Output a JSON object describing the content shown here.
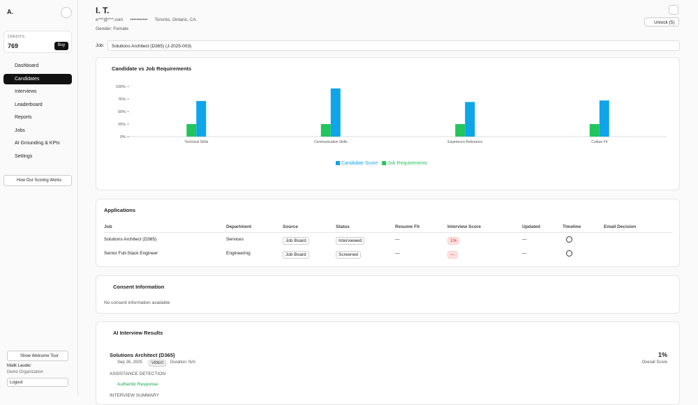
{
  "sidebar": {
    "logo": "A.",
    "credits_label": "CREDITS",
    "credits": 769,
    "buy": "Buy",
    "nav": [
      "Dashboard",
      "Candidates",
      "Interviews",
      "Leaderboard",
      "Reports",
      "Jobs",
      "AI Grounding & KPIs",
      "Settings"
    ],
    "scoring": "How Our Scoring Works",
    "tour": "Show Welcome Tour",
    "user": "Malik Lauder",
    "org": "Demo Organization",
    "logout": "Logout"
  },
  "header": {
    "name": "I. T.",
    "email": "e***@***.com",
    "phone": "•••••••••••",
    "location": "Toronto, Ontario, CA",
    "gender": "Gender: Female",
    "unlock": "Unlock (5)"
  },
  "job_select": {
    "label": "Job:",
    "value": "Solutions Architect (D365) (J-2025-003)"
  },
  "chart_card": {
    "title": "Candidate vs Job Requirements"
  },
  "chart_data": {
    "type": "bar",
    "categories": [
      "Technical Skills",
      "Communication Skills",
      "Experience Relevance",
      "Culture Fit"
    ],
    "series": [
      {
        "name": "Candidate Score",
        "color": "#0ea5e9",
        "values": [
          71,
          96,
          69,
          72
        ]
      },
      {
        "name": "Job Requirements",
        "color": "#22c55e",
        "values": [
          25,
          25,
          25,
          25
        ]
      }
    ],
    "ylim": [
      0,
      100
    ],
    "yticks": [
      {
        "value": 0,
        "label": "0%"
      },
      {
        "value": 25,
        "label": "25%"
      },
      {
        "value": 50,
        "label": "50%"
      },
      {
        "value": 75,
        "label": "75%"
      },
      {
        "value": 100,
        "label": "100%"
      }
    ]
  },
  "applications": {
    "title": "Applications",
    "columns": [
      "Job",
      "Department",
      "Source",
      "Status",
      "Resume Fit",
      "Interview Score",
      "Updated",
      "Timeline",
      "Email Decision"
    ],
    "rows": [
      [
        "Solutions Architect (D365)",
        "Services",
        "Job Board",
        "Interviewed",
        "—",
        "1%",
        "—"
      ],
      [
        "Senior Full-Stack Engineer",
        "Engineering",
        "Job Board",
        "Screened",
        "—",
        "—",
        "—"
      ]
    ]
  },
  "consent": {
    "title": "Consent Information",
    "text": "No consent information available"
  },
  "interview": {
    "title": "AI Interview Results",
    "job": "Solutions Architect (D365)",
    "date": "Sep 26, 2025",
    "medium": "VIDEO",
    "duration": "Duration: N/A",
    "score": "1%",
    "score_label": "Overall Score",
    "assist": "ASSISTANCE DETECTION",
    "authentic": "Authentic Response",
    "summary": "INTERVIEW SUMMARY"
  }
}
